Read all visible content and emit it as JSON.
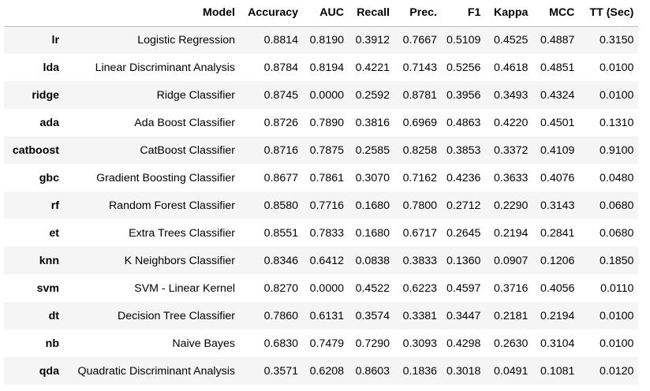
{
  "table": {
    "headers": [
      "",
      "Model",
      "Accuracy",
      "AUC",
      "Recall",
      "Prec.",
      "F1",
      "Kappa",
      "MCC",
      "TT (Sec)"
    ],
    "rows": [
      {
        "id": "lr",
        "model": "Logistic Regression",
        "accuracy": "0.8814",
        "auc": "0.8190",
        "recall": "0.3912",
        "prec": "0.7667",
        "f1": "0.5109",
        "kappa": "0.4525",
        "mcc": "0.4887",
        "tt": "0.3150"
      },
      {
        "id": "lda",
        "model": "Linear Discriminant Analysis",
        "accuracy": "0.8784",
        "auc": "0.8194",
        "recall": "0.4221",
        "prec": "0.7143",
        "f1": "0.5256",
        "kappa": "0.4618",
        "mcc": "0.4851",
        "tt": "0.0100"
      },
      {
        "id": "ridge",
        "model": "Ridge Classifier",
        "accuracy": "0.8745",
        "auc": "0.0000",
        "recall": "0.2592",
        "prec": "0.8781",
        "f1": "0.3956",
        "kappa": "0.3493",
        "mcc": "0.4324",
        "tt": "0.0100"
      },
      {
        "id": "ada",
        "model": "Ada Boost Classifier",
        "accuracy": "0.8726",
        "auc": "0.7890",
        "recall": "0.3816",
        "prec": "0.6969",
        "f1": "0.4863",
        "kappa": "0.4220",
        "mcc": "0.4501",
        "tt": "0.1310"
      },
      {
        "id": "catboost",
        "model": "CatBoost Classifier",
        "accuracy": "0.8716",
        "auc": "0.7875",
        "recall": "0.2585",
        "prec": "0.8258",
        "f1": "0.3853",
        "kappa": "0.3372",
        "mcc": "0.4109",
        "tt": "0.9100"
      },
      {
        "id": "gbc",
        "model": "Gradient Boosting Classifier",
        "accuracy": "0.8677",
        "auc": "0.7861",
        "recall": "0.3070",
        "prec": "0.7162",
        "f1": "0.4236",
        "kappa": "0.3633",
        "mcc": "0.4076",
        "tt": "0.0480"
      },
      {
        "id": "rf",
        "model": "Random Forest Classifier",
        "accuracy": "0.8580",
        "auc": "0.7716",
        "recall": "0.1680",
        "prec": "0.7800",
        "f1": "0.2712",
        "kappa": "0.2290",
        "mcc": "0.3143",
        "tt": "0.0680"
      },
      {
        "id": "et",
        "model": "Extra Trees Classifier",
        "accuracy": "0.8551",
        "auc": "0.7833",
        "recall": "0.1680",
        "prec": "0.6717",
        "f1": "0.2645",
        "kappa": "0.2194",
        "mcc": "0.2841",
        "tt": "0.0680"
      },
      {
        "id": "knn",
        "model": "K Neighbors Classifier",
        "accuracy": "0.8346",
        "auc": "0.6412",
        "recall": "0.0838",
        "prec": "0.3833",
        "f1": "0.1360",
        "kappa": "0.0907",
        "mcc": "0.1206",
        "tt": "0.1850"
      },
      {
        "id": "svm",
        "model": "SVM - Linear Kernel",
        "accuracy": "0.8270",
        "auc": "0.0000",
        "recall": "0.4522",
        "prec": "0.6223",
        "f1": "0.4597",
        "kappa": "0.3716",
        "mcc": "0.4056",
        "tt": "0.0110"
      },
      {
        "id": "dt",
        "model": "Decision Tree Classifier",
        "accuracy": "0.7860",
        "auc": "0.6131",
        "recall": "0.3574",
        "prec": "0.3381",
        "f1": "0.3447",
        "kappa": "0.2181",
        "mcc": "0.2194",
        "tt": "0.0100"
      },
      {
        "id": "nb",
        "model": "Naive Bayes",
        "accuracy": "0.6830",
        "auc": "0.7479",
        "recall": "0.7290",
        "prec": "0.3093",
        "f1": "0.4298",
        "kappa": "0.2630",
        "mcc": "0.3104",
        "tt": "0.0100"
      },
      {
        "id": "qda",
        "model": "Quadratic Discriminant Analysis",
        "accuracy": "0.3571",
        "auc": "0.6208",
        "recall": "0.8603",
        "prec": "0.1836",
        "f1": "0.3018",
        "kappa": "0.0491",
        "mcc": "0.1081",
        "tt": "0.0120"
      }
    ]
  },
  "colors": {
    "stripe": "#f5f5f5",
    "background": "#ffffff",
    "header_rule": "#bdbdbd"
  }
}
